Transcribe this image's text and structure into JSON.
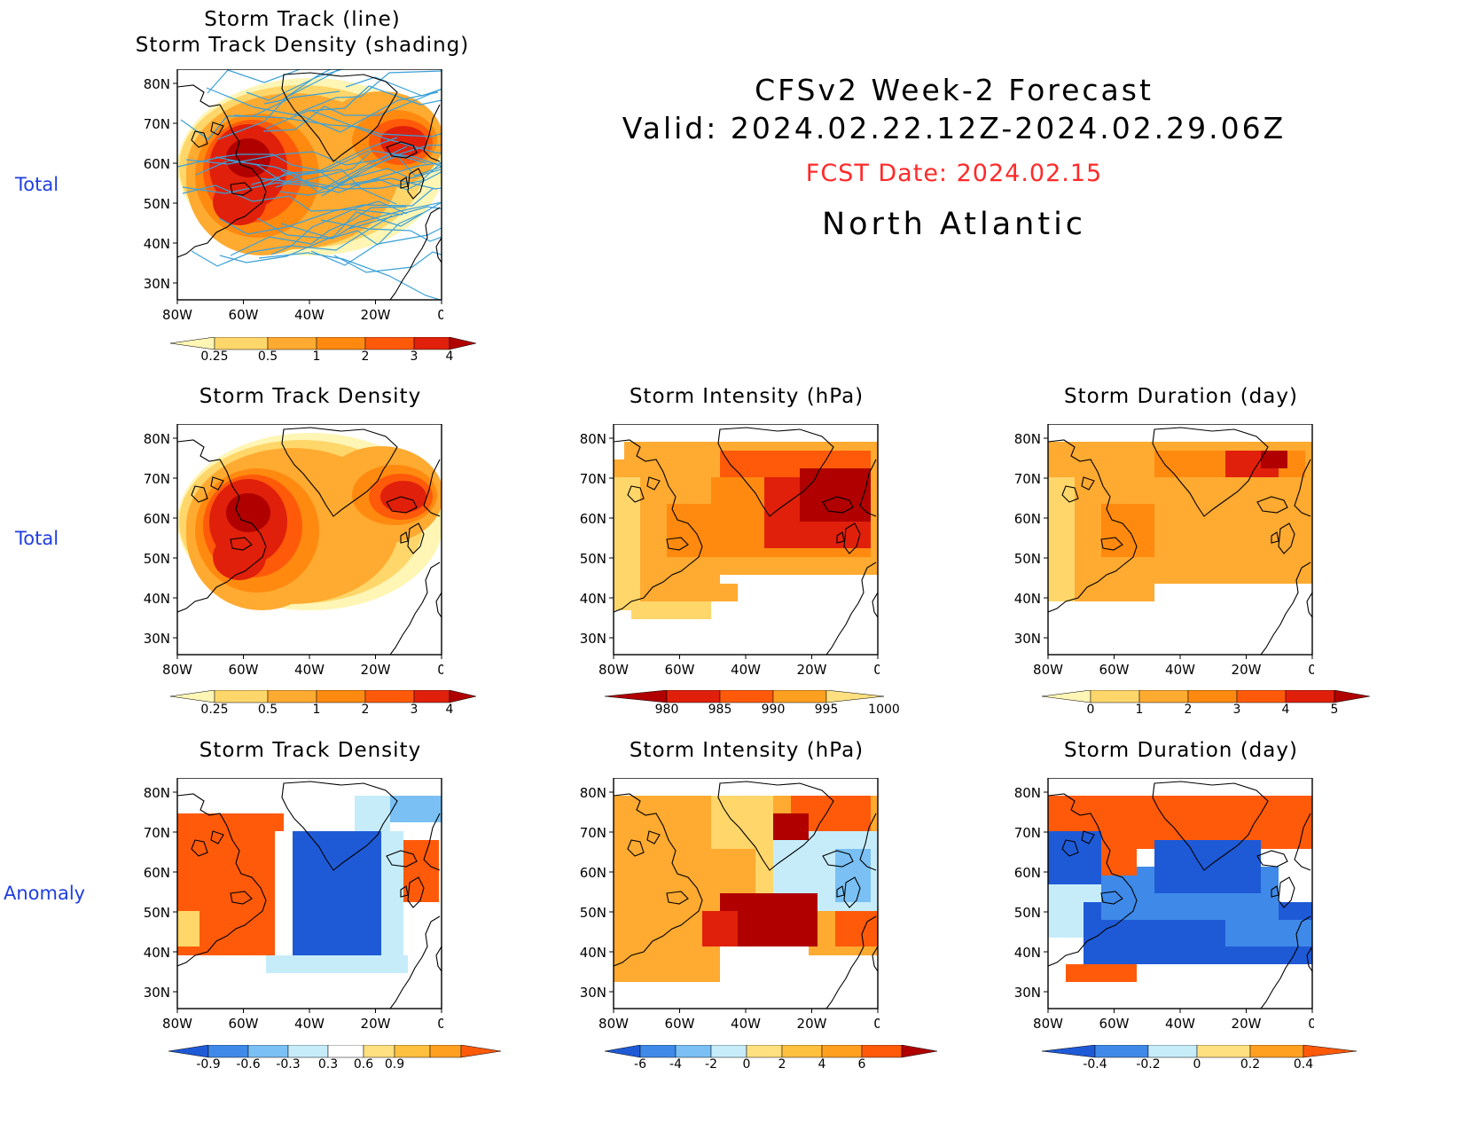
{
  "header": {
    "title": "CFSv2 Week-2 Forecast",
    "valid": "Valid: 2024.02.22.12Z-2024.02.29.06Z",
    "fcst_date": "FCST Date: 2024.02.15",
    "region": "North Atlantic"
  },
  "row_labels": [
    "Total",
    "Total",
    "Anomaly"
  ],
  "axes": {
    "lat_labels": [
      "80N",
      "70N",
      "60N",
      "50N",
      "40N",
      "30N"
    ],
    "lon_labels": [
      "80W",
      "60W",
      "40W",
      "20W",
      "0"
    ]
  },
  "panels": {
    "p1": {
      "title_line1": "Storm Track (line)",
      "title_line2": "Storm Track Density (shading)"
    },
    "p2": {
      "title": "Storm Track Density"
    },
    "p3": {
      "title": "Storm Intensity (hPa)"
    },
    "p4": {
      "title": "Storm Duration (day)"
    },
    "p5": {
      "title": "Storm Track Density"
    },
    "p6": {
      "title": "Storm Intensity (hPa)"
    },
    "p7": {
      "title": "Storm Duration (day)"
    }
  },
  "colorbars": {
    "density": {
      "labels": [
        "0.25",
        "0.5",
        "1",
        "2",
        "3",
        "4"
      ],
      "colors": [
        "#fff5b4",
        "#ffd66a",
        "#ffaa30",
        "#ff8a0f",
        "#ff5a0a",
        "#e0200a",
        "#b00000"
      ]
    },
    "intensity": {
      "labels": [
        "980",
        "985",
        "990",
        "995",
        "1000"
      ],
      "colors": [
        "#b00000",
        "#e0200a",
        "#ff5a0a",
        "#ffa020",
        "#ffe080"
      ]
    },
    "duration": {
      "labels": [
        "0",
        "1",
        "2",
        "3",
        "4",
        "5"
      ],
      "colors": [
        "#fff5b4",
        "#ffd66a",
        "#ffaa30",
        "#ff8a0f",
        "#ff5a0a",
        "#e0200a",
        "#b00000"
      ]
    },
    "density_anom": {
      "labels": [
        "-0.9",
        "-0.6",
        "-0.3",
        "0.3",
        "0.6",
        "0.9"
      ],
      "colors": [
        "#1f5ad6",
        "#3f8ae8",
        "#7ac0f4",
        "#c6ecfa",
        "#ffffff",
        "#ffe080",
        "#ffc040",
        "#ffa020",
        "#ff5a0a"
      ]
    },
    "intensity_anom": {
      "labels": [
        "-6",
        "-4",
        "-2",
        "0",
        "2",
        "4",
        "6"
      ],
      "colors": [
        "#1f5ad6",
        "#3f8ae8",
        "#7ac0f4",
        "#c6ecfa",
        "#ffe080",
        "#ffc040",
        "#ffa020",
        "#ff5a0a",
        "#b00000"
      ]
    },
    "duration_anom": {
      "labels": [
        "-0.4",
        "-0.2",
        "0",
        "0.2",
        "0.4"
      ],
      "colors": [
        "#1f5ad6",
        "#3f8ae8",
        "#c6ecfa",
        "#ffe080",
        "#ffa020",
        "#ff5a0a"
      ]
    }
  }
}
